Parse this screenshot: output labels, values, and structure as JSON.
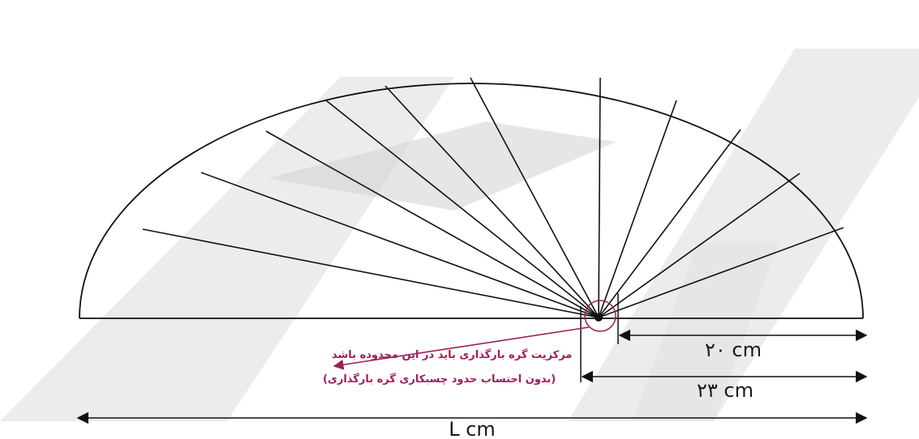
{
  "diagram": {
    "colors": {
      "line": "#111111",
      "annotation": "#9c1f5a",
      "watermark": "#d9d9d9"
    },
    "dimensions": {
      "inner": "۲۰ cm",
      "outer": "۲۳ cm",
      "total": "L cm"
    },
    "note": {
      "line1": "مرکزیت گره بارگذاری باید در این محدوده باشد",
      "line2": "(بدون احتساب حدود چسبکاری گره بارگذاری)"
    }
  }
}
